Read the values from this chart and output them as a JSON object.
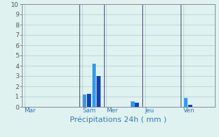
{
  "xlabel": "Précipitations 24h ( mm )",
  "background_color": "#dff2f0",
  "bar_color_dark": "#1144bb",
  "bar_color_light": "#3399ee",
  "grid_color": "#aacccc",
  "axis_label_color": "#3377bb",
  "tick_label_color": "#555555",
  "vline_color": "#555577",
  "ylim": [
    0,
    10
  ],
  "yticks": [
    0,
    1,
    2,
    3,
    4,
    5,
    6,
    7,
    8,
    9,
    10
  ],
  "xlim": [
    0,
    40
  ],
  "day_labels": [
    "Mar",
    "Sam",
    "Mer",
    "Jeu",
    "Ven"
  ],
  "day_x": [
    0.5,
    12.5,
    17.5,
    25.5,
    33.5
  ],
  "vline_x": [
    12,
    17,
    25,
    33
  ],
  "bars": [
    {
      "x": 13.0,
      "height": 1.2,
      "color": "#3399ee"
    },
    {
      "x": 13.9,
      "height": 1.3,
      "color": "#1144bb"
    },
    {
      "x": 15.0,
      "height": 4.2,
      "color": "#3399ee"
    },
    {
      "x": 15.9,
      "height": 3.0,
      "color": "#1144bb"
    },
    {
      "x": 23.0,
      "height": 0.55,
      "color": "#3399ee"
    },
    {
      "x": 23.9,
      "height": 0.4,
      "color": "#1144bb"
    },
    {
      "x": 34.0,
      "height": 0.9,
      "color": "#3399ee"
    },
    {
      "x": 34.9,
      "height": 0.2,
      "color": "#1144bb"
    }
  ],
  "bar_width": 0.8
}
